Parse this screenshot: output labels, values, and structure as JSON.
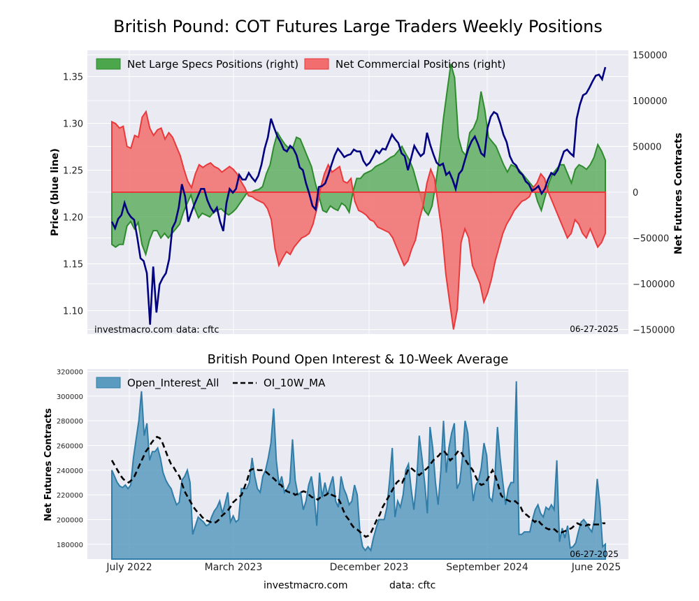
{
  "figure_title": "British Pound: COT Futures Large Traders Weekly Positions",
  "source_text": "investmacro.com",
  "data_text": "data: cftc",
  "date_stamp": "06-27-2025",
  "colors": {
    "panel_bg": "#EAEAF2",
    "grid": "#ffffff",
    "price_line": "#000080",
    "specs_fill": "#4CA64C",
    "specs_edge": "#2E8B2E",
    "comm_fill": "#F26D6D",
    "comm_edge": "#E8393B",
    "oi_fill": "#5B9BC0",
    "oi_edge": "#2F7DA8",
    "ma_line": "#000000"
  },
  "chart_data": [
    {
      "type": "line+area",
      "title": "British Pound: COT Futures Large Traders Weekly Positions",
      "ylabel_left": "Price (blue line)",
      "ylabel_right": "Net Futures Contracts",
      "ylim_left": [
        1.075,
        1.378
      ],
      "ylim_right": [
        -155000,
        155000
      ],
      "yticks_left": [
        "1.10",
        "1.15",
        "1.20",
        "1.25",
        "1.30",
        "1.35"
      ],
      "yticks_right": [
        "150000",
        "100000",
        "50000",
        "0",
        "−50000",
        "−100000",
        "−150000"
      ],
      "legend_position": "top",
      "grid": true,
      "series": [
        {
          "name": "Net Large Specs Positions (right)",
          "kind": "area",
          "values": [
            -57000,
            -60000,
            -57000,
            -57000,
            -37000,
            -32000,
            -40000,
            -33000,
            -57000,
            -68000,
            -52000,
            -42000,
            -42000,
            -50000,
            -45000,
            -50000,
            -45000,
            -40000,
            -35000,
            -22000,
            -12000,
            -3000,
            -18000,
            -28000,
            -23000,
            -25000,
            -27000,
            -22000,
            -20000,
            -18000,
            -22000,
            -25000,
            -22000,
            -18000,
            -12000,
            -6000,
            0,
            0,
            2000,
            3000,
            6000,
            20000,
            30000,
            50000,
            65000,
            58000,
            52000,
            48000,
            48000,
            60000,
            58000,
            48000,
            38000,
            28000,
            10000,
            -5000,
            -20000,
            -22000,
            -15000,
            -18000,
            -20000,
            -12000,
            -15000,
            -22000,
            0,
            15000,
            15000,
            20000,
            22000,
            24000,
            28000,
            30000,
            32000,
            35000,
            38000,
            40000,
            45000,
            50000,
            42000,
            35000,
            25000,
            10000,
            -5000,
            -20000,
            -25000,
            -15000,
            10000,
            40000,
            80000,
            110000,
            140000,
            125000,
            60000,
            45000,
            40000,
            65000,
            70000,
            80000,
            110000,
            90000,
            60000,
            55000,
            50000,
            40000,
            30000,
            22000,
            30000,
            28000,
            25000,
            20000,
            15000,
            10000,
            5000,
            -10000,
            -20000,
            -5000,
            10000,
            20000,
            25000,
            30000,
            30000,
            20000,
            10000,
            25000,
            30000,
            28000,
            25000,
            30000,
            38000,
            52000,
            45000,
            35000
          ]
        },
        {
          "name": "Net Commercial Positions (right)",
          "kind": "area",
          "values": [
            77000,
            75000,
            70000,
            72000,
            50000,
            48000,
            62000,
            60000,
            82000,
            88000,
            70000,
            62000,
            68000,
            70000,
            58000,
            65000,
            60000,
            50000,
            40000,
            25000,
            12000,
            5000,
            20000,
            30000,
            27000,
            30000,
            32000,
            28000,
            26000,
            22000,
            25000,
            28000,
            25000,
            20000,
            12000,
            5000,
            -4000,
            -5000,
            -8000,
            -10000,
            -12000,
            -18000,
            -30000,
            -62000,
            -80000,
            -72000,
            -65000,
            -68000,
            -60000,
            -55000,
            -50000,
            -48000,
            -45000,
            -35000,
            -18000,
            5000,
            20000,
            30000,
            22000,
            25000,
            28000,
            12000,
            10000,
            15000,
            -10000,
            -20000,
            -22000,
            -25000,
            -30000,
            -32000,
            -38000,
            -40000,
            -42000,
            -44000,
            -50000,
            -60000,
            -70000,
            -80000,
            -75000,
            -62000,
            -52000,
            -30000,
            -15000,
            10000,
            25000,
            15000,
            -15000,
            -45000,
            -90000,
            -120000,
            -150000,
            -128000,
            -55000,
            -40000,
            -50000,
            -80000,
            -90000,
            -100000,
            -120000,
            -110000,
            -95000,
            -75000,
            -60000,
            -45000,
            -35000,
            -28000,
            -20000,
            -15000,
            -10000,
            -8000,
            -5000,
            5000,
            10000,
            20000,
            15000,
            0,
            -10000,
            -20000,
            -30000,
            -40000,
            -50000,
            -45000,
            -30000,
            -35000,
            -45000,
            -50000,
            -40000,
            -50000,
            -60000,
            -55000,
            -45000
          ]
        },
        {
          "name": "Price",
          "kind": "line",
          "values": [
            1.195,
            1.188,
            1.198,
            1.202,
            1.215,
            1.205,
            1.2,
            1.197,
            1.178,
            1.156,
            1.153,
            1.14,
            1.085,
            1.147,
            1.098,
            1.128,
            1.135,
            1.14,
            1.155,
            1.188,
            1.195,
            1.21,
            1.235,
            1.222,
            1.195,
            1.205,
            1.214,
            1.222,
            1.23,
            1.23,
            1.218,
            1.21,
            1.205,
            1.21,
            1.195,
            1.185,
            1.215,
            1.23,
            1.226,
            1.23,
            1.245,
            1.24,
            1.24,
            1.247,
            1.242,
            1.238,
            1.244,
            1.256,
            1.273,
            1.285,
            1.305,
            1.295,
            1.286,
            1.28,
            1.272,
            1.27,
            1.276,
            1.273,
            1.266,
            1.253,
            1.25,
            1.236,
            1.225,
            1.212,
            1.208,
            1.232,
            1.233,
            1.236,
            1.245,
            1.256,
            1.266,
            1.273,
            1.269,
            1.264,
            1.266,
            1.267,
            1.272,
            1.27,
            1.27,
            1.26,
            1.255,
            1.258,
            1.264,
            1.271,
            1.268,
            1.273,
            1.272,
            1.28,
            1.288,
            1.283,
            1.279,
            1.268,
            1.265,
            1.25,
            1.263,
            1.276,
            1.27,
            1.265,
            1.268,
            1.29,
            1.277,
            1.267,
            1.258,
            1.255,
            1.257,
            1.245,
            1.248,
            1.24,
            1.23,
            1.246,
            1.25,
            1.262,
            1.273,
            1.281,
            1.286,
            1.278,
            1.268,
            1.265,
            1.295,
            1.307,
            1.312,
            1.31,
            1.3,
            1.288,
            1.28,
            1.265,
            1.258,
            1.255,
            1.248,
            1.245,
            1.238,
            1.235,
            1.228,
            1.23,
            1.233,
            1.225,
            1.23,
            1.24,
            1.247,
            1.245,
            1.25,
            1.26,
            1.27,
            1.272,
            1.268,
            1.265,
            1.305,
            1.32,
            1.33,
            1.332,
            1.338,
            1.345,
            1.351,
            1.352,
            1.347,
            1.36
          ]
        }
      ]
    },
    {
      "type": "area+line",
      "title": "British Pound Open Interest & 10-Week Average",
      "ylabel": "Net Futures Contracts",
      "ylim": [
        168000,
        322000
      ],
      "yticks": [
        "180000",
        "200000",
        "220000",
        "240000",
        "260000",
        "280000",
        "300000",
        "320000"
      ],
      "xticks": [
        "July 2022",
        "March 2023",
        "December 2023",
        "September 2024",
        "June 2025"
      ],
      "legend_position": "top-left",
      "grid": true,
      "series": [
        {
          "name": "Open_Interest_All",
          "kind": "area",
          "values": [
            240000,
            235000,
            230000,
            227000,
            226000,
            228000,
            225000,
            228000,
            250000,
            265000,
            280000,
            304000,
            268000,
            278000,
            248000,
            255000,
            255000,
            258000,
            250000,
            238000,
            232000,
            228000,
            225000,
            218000,
            212000,
            214000,
            232000,
            235000,
            240000,
            230000,
            188000,
            195000,
            202000,
            200000,
            198000,
            195000,
            196000,
            202000,
            207000,
            210000,
            215000,
            205000,
            213000,
            222000,
            198000,
            203000,
            198000,
            200000,
            225000,
            225000,
            225000,
            230000,
            250000,
            235000,
            225000,
            222000,
            235000,
            240000,
            250000,
            262000,
            290000,
            248000,
            228000,
            235000,
            222000,
            225000,
            230000,
            265000,
            232000,
            220000,
            222000,
            208000,
            215000,
            228000,
            235000,
            220000,
            195000,
            238000,
            218000,
            230000,
            220000,
            228000,
            235000,
            215000,
            210000,
            235000,
            225000,
            220000,
            212000,
            215000,
            228000,
            220000,
            190000,
            178000,
            175000,
            178000,
            175000,
            185000,
            193000,
            200000,
            200000,
            200000,
            210000,
            232000,
            258000,
            202000,
            215000,
            210000,
            220000,
            240000,
            245000,
            225000,
            208000,
            230000,
            268000,
            250000,
            230000,
            205000,
            275000,
            258000,
            230000,
            212000,
            240000,
            280000,
            238000,
            258000,
            270000,
            278000,
            225000,
            230000,
            250000,
            280000,
            270000,
            240000,
            215000,
            228000,
            232000,
            242000,
            262000,
            252000,
            218000,
            215000,
            232000,
            275000,
            250000,
            230000,
            212000,
            225000,
            230000,
            230000,
            312000,
            188000,
            188000,
            190000,
            190000,
            190000,
            200000,
            208000,
            212000,
            205000,
            202000,
            210000,
            208000,
            212000,
            208000,
            248000,
            182000,
            193000,
            185000,
            195000,
            177000,
            178000,
            181000,
            190000,
            198000,
            200000,
            197000,
            193000,
            190000,
            200000,
            233000,
            212000,
            178000,
            180000
          ]
        },
        {
          "name": "OI_10W_MA",
          "kind": "line",
          "values": [
            248000,
            244000,
            240000,
            236000,
            233000,
            231000,
            230000,
            232000,
            235000,
            240000,
            245000,
            250000,
            255000,
            258000,
            262000,
            265000,
            267000,
            266000,
            262000,
            256000,
            250000,
            245000,
            242000,
            238000,
            235000,
            228000,
            222000,
            218000,
            214000,
            210000,
            207000,
            205000,
            202000,
            200000,
            199000,
            198000,
            197000,
            198000,
            200000,
            203000,
            205000,
            207000,
            210000,
            214000,
            216000,
            218000,
            220000,
            226000,
            232000,
            240000,
            241000,
            241000,
            240000,
            240000,
            240000,
            238000,
            236000,
            234000,
            232000,
            229000,
            228000,
            225000,
            223000,
            222000,
            222000,
            220000,
            221000,
            222000,
            223000,
            222000,
            220000,
            218000,
            218000,
            216000,
            218000,
            219000,
            220000,
            222000,
            220000,
            219000,
            218000,
            214000,
            208000,
            203000,
            200000,
            196000,
            193000,
            192000,
            190000,
            188000,
            186000,
            187000,
            190000,
            195000,
            200000,
            204000,
            210000,
            214000,
            218000,
            222000,
            226000,
            230000,
            232000,
            230000,
            235000,
            240000,
            242000,
            240000,
            238000,
            236000,
            238000,
            240000,
            242000,
            245000,
            248000,
            250000,
            252000,
            255000,
            255000,
            252000,
            248000,
            250000,
            253000,
            256000,
            254000,
            250000,
            246000,
            243000,
            240000,
            235000,
            230000,
            228000,
            229000,
            232000,
            236000,
            240000,
            235000,
            228000,
            220000,
            217000,
            216000,
            215000,
            214000,
            215000,
            213000,
            210000,
            205000,
            204000,
            202000,
            200000,
            198000,
            200000,
            197000,
            195000,
            193000,
            192000,
            193000,
            192000,
            190000,
            189000,
            190000,
            191000,
            192000,
            193000,
            195000,
            197000,
            196000,
            195000,
            195000,
            196000,
            195000,
            196000,
            196000,
            196000,
            197000,
            197000
          ]
        }
      ]
    }
  ]
}
